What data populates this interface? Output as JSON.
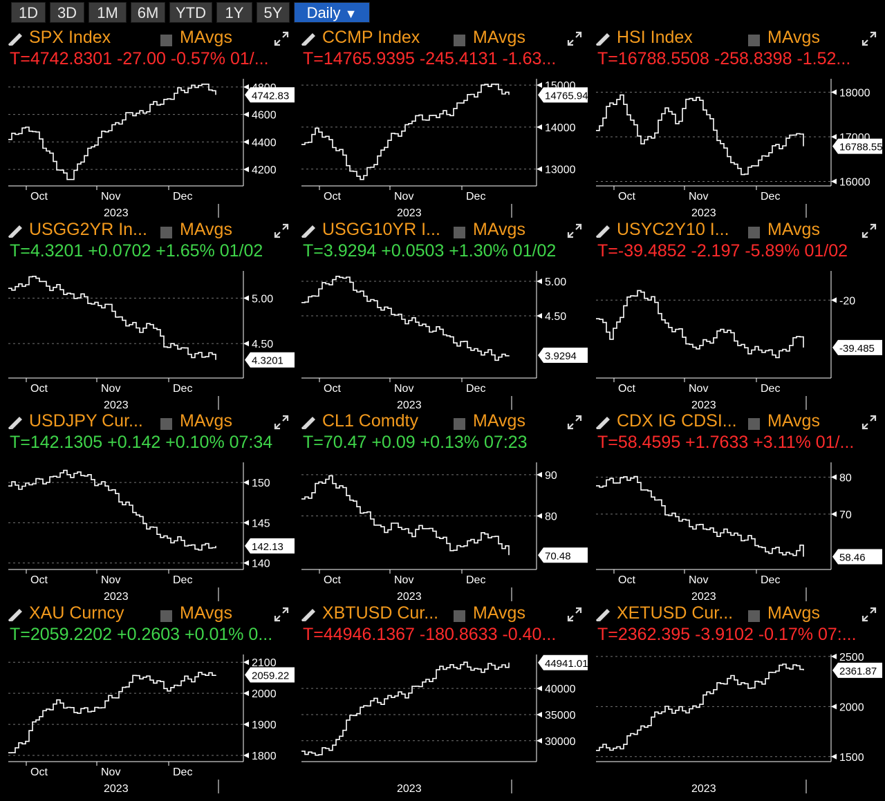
{
  "toolbar": {
    "buttons": [
      "1D",
      "3D",
      "1M",
      "6M",
      "YTD",
      "1Y",
      "5Y"
    ],
    "period_label": "Daily",
    "period_arrow": "▼",
    "active_color": "#1f5fbf"
  },
  "colors": {
    "header": "#f39a1d",
    "negative": "#ff2b2b",
    "positive": "#3fd54a"
  },
  "panels": [
    {
      "title": "SPX Index",
      "mavgs": "MAvgs",
      "quote": "T=4742.8301 -27.00 -0.57% 01/...",
      "direction": "negative",
      "chart_data": {
        "type": "line",
        "y_ticks": [
          "4800",
          "4600",
          "4400",
          "4200"
        ],
        "y_tick_values": [
          4800,
          4600,
          4400,
          4200
        ],
        "ylim": [
          4080,
          4860
        ],
        "last_label": "4742.83",
        "last_value": 4742.83,
        "x_labels": [
          "Oct",
          "Nov",
          "Dec"
        ],
        "year_label": "2023",
        "shape": [
          0.4,
          0.55,
          0.5,
          0.35,
          0.1,
          0.0,
          0.2,
          0.4,
          0.5,
          0.62,
          0.68,
          0.72,
          0.78,
          0.85,
          0.92,
          0.98,
          1.0,
          0.94
        ]
      }
    },
    {
      "title": "CCMP Index",
      "mavgs": "MAvgs",
      "quote": "T=14765.9395 -245.4131 -1.63...",
      "direction": "negative",
      "chart_data": {
        "type": "line",
        "y_ticks": [
          "15000",
          "14000",
          "13000"
        ],
        "y_tick_values": [
          15000,
          14000,
          13000
        ],
        "ylim": [
          12600,
          15150
        ],
        "last_label": "14765.94",
        "last_value": 14765.94,
        "x_labels": [
          "Oct",
          "Nov",
          "Dec"
        ],
        "year_label": "2023",
        "shape": [
          0.35,
          0.5,
          0.45,
          0.3,
          0.1,
          0.0,
          0.2,
          0.4,
          0.5,
          0.62,
          0.66,
          0.66,
          0.7,
          0.8,
          0.9,
          0.98,
          1.0,
          0.85
        ]
      }
    },
    {
      "title": "HSI Index",
      "mavgs": "MAvgs",
      "quote": "T=16788.5508 -258.8398 -1.52...",
      "direction": "negative",
      "chart_data": {
        "type": "line",
        "y_ticks": [
          "18000",
          "17000",
          "16000"
        ],
        "y_tick_values": [
          18000,
          17000,
          16000
        ],
        "ylim": [
          15900,
          18300
        ],
        "last_label": "16788.55",
        "last_value": 16788.55,
        "x_labels": [
          "Oct",
          "Nov",
          "Dec"
        ],
        "year_label": "2023",
        "shape": [
          0.5,
          0.75,
          0.9,
          0.6,
          0.4,
          0.45,
          0.8,
          0.55,
          0.9,
          0.8,
          0.6,
          0.3,
          0.15,
          0.05,
          0.2,
          0.3,
          0.35,
          0.5,
          0.4
        ]
      }
    },
    {
      "title": "USGG2YR In...",
      "mavgs": "MAvgs",
      "quote": "T=4.3201 +0.0702 +1.65% 01/02",
      "direction": "positive",
      "chart_data": {
        "type": "line",
        "y_ticks": [
          "5.00",
          "4.50"
        ],
        "y_tick_values": [
          5.0,
          4.5
        ],
        "ylim": [
          4.12,
          5.3
        ],
        "last_label": "4.3201",
        "last_value": 4.3201,
        "x_labels": [
          "Oct",
          "Nov",
          "Dec"
        ],
        "year_label": "2023",
        "shape": [
          0.85,
          0.92,
          1.0,
          0.9,
          0.85,
          0.8,
          0.75,
          0.7,
          0.65,
          0.5,
          0.45,
          0.5,
          0.3,
          0.25,
          0.2,
          0.15,
          0.2
        ]
      }
    },
    {
      "title": "USGG10YR I...",
      "mavgs": "MAvgs",
      "quote": "T=3.9294 +0.0503 +1.30% 01/02",
      "direction": "positive",
      "chart_data": {
        "type": "line",
        "y_ticks": [
          "5.00",
          "4.50"
        ],
        "y_tick_values": [
          5.0,
          4.5
        ],
        "ylim": [
          3.6,
          5.15
        ],
        "last_label": "3.9294",
        "last_value": 3.9294,
        "x_labels": [
          "Oct",
          "Nov",
          "Dec"
        ],
        "year_label": "2023",
        "shape": [
          0.75,
          0.8,
          0.95,
          1.0,
          0.9,
          0.75,
          0.7,
          0.6,
          0.55,
          0.5,
          0.45,
          0.4,
          0.3,
          0.25,
          0.2,
          0.15,
          0.2
        ]
      }
    },
    {
      "title": "USYC2Y10 I...",
      "mavgs": "MAvgs",
      "quote": "T=-39.4852 -2.197 -5.89% 01/02",
      "direction": "negative",
      "chart_data": {
        "type": "line",
        "y_ticks": [
          "-20"
        ],
        "y_tick_values": [
          -20
        ],
        "ylim": [
          -52,
          -8
        ],
        "last_label": "-39.485",
        "last_value": -39.485,
        "x_labels": [
          "Oct",
          "Nov",
          "Dec"
        ],
        "year_label": "2023",
        "shape": [
          0.6,
          0.35,
          0.7,
          0.85,
          0.75,
          0.5,
          0.4,
          0.25,
          0.3,
          0.45,
          0.35,
          0.2,
          0.25,
          0.15,
          0.3,
          0.4
        ]
      }
    },
    {
      "title": "USDJPY Cur...",
      "mavgs": "MAvgs",
      "quote": "T=142.1305 +0.142 +0.10% 07:34",
      "direction": "positive",
      "chart_data": {
        "type": "line",
        "y_ticks": [
          "150",
          "145",
          "140"
        ],
        "y_tick_values": [
          150,
          145,
          140
        ],
        "ylim": [
          139.2,
          152.5
        ],
        "last_label": "142.13",
        "last_value": 142.13,
        "x_labels": [
          "Oct",
          "Nov",
          "Dec"
        ],
        "year_label": "2023",
        "shape": [
          0.8,
          0.82,
          0.85,
          0.9,
          0.95,
          0.92,
          0.85,
          0.75,
          0.6,
          0.45,
          0.3,
          0.25,
          0.2,
          0.15,
          0.2
        ]
      }
    },
    {
      "title": "CL1 Comdty",
      "mavgs": "MAvgs",
      "quote": "T=70.47 +0.09 +0.13% 07:23",
      "direction": "positive",
      "chart_data": {
        "type": "line",
        "y_ticks": [
          "90",
          "80"
        ],
        "y_tick_values": [
          90,
          80
        ],
        "ylim": [
          67,
          93
        ],
        "last_label": "70.48",
        "last_value": 70.48,
        "x_labels": [
          "Oct",
          "Nov",
          "Dec"
        ],
        "year_label": "2023",
        "shape": [
          0.65,
          0.8,
          0.9,
          0.75,
          0.6,
          0.45,
          0.35,
          0.4,
          0.3,
          0.4,
          0.25,
          0.15,
          0.2,
          0.3,
          0.25,
          0.15
        ]
      }
    },
    {
      "title": "CDX IG CDSI...",
      "mavgs": "MAvgs",
      "quote": "T=58.4595 +1.7633 +3.11% 01/...",
      "direction": "negative",
      "chart_data": {
        "type": "line",
        "y_ticks": [
          "80",
          "70"
        ],
        "y_tick_values": [
          80,
          70
        ],
        "ylim": [
          55,
          84
        ],
        "last_label": "58.46",
        "last_value": 58.46,
        "x_labels": [
          "Oct",
          "Nov",
          "Dec"
        ],
        "year_label": "2023",
        "shape": [
          0.8,
          0.85,
          0.9,
          0.85,
          0.7,
          0.55,
          0.45,
          0.4,
          0.35,
          0.32,
          0.3,
          0.25,
          0.15,
          0.12,
          0.1,
          0.15
        ]
      }
    },
    {
      "title": "XAU Curncy",
      "mavgs": "MAvgs",
      "quote": "T=2059.2202 +0.2603 +0.01% 0...",
      "direction": "positive",
      "chart_data": {
        "type": "line",
        "y_ticks": [
          "2100",
          "2000",
          "1900",
          "1800"
        ],
        "y_tick_values": [
          2100,
          2000,
          1900,
          1800
        ],
        "ylim": [
          1780,
          2125
        ],
        "last_label": "2059.22",
        "last_value": 2059.22,
        "x_labels": [
          "Oct",
          "Nov",
          "Dec"
        ],
        "year_label": "2023",
        "shape": [
          0.0,
          0.15,
          0.4,
          0.55,
          0.5,
          0.45,
          0.5,
          0.6,
          0.75,
          0.85,
          0.75,
          0.7,
          0.8,
          0.85,
          0.82
        ]
      }
    },
    {
      "title": "XBTUSD Cur...",
      "mavgs": "MAvgs",
      "quote": "T=44946.1367 -180.8633 -0.40...",
      "direction": "negative",
      "chart_data": {
        "type": "line",
        "y_ticks": [
          "40000",
          "35000",
          "30000"
        ],
        "y_tick_values": [
          40000,
          35000,
          30000
        ],
        "ylim": [
          26000,
          46500
        ],
        "last_label": "44941.01",
        "last_value": 44941.01,
        "x_labels": [],
        "year_label": "2023",
        "shape": [
          0.05,
          0.0,
          0.15,
          0.45,
          0.55,
          0.6,
          0.65,
          0.75,
          0.9,
          0.95,
          0.9,
          0.92,
          0.95
        ]
      }
    },
    {
      "title": "XETUSD Cur...",
      "mavgs": "MAvgs",
      "quote": "T=2362.395 -3.9102 -0.17% 07:...",
      "direction": "negative",
      "chart_data": {
        "type": "line",
        "y_ticks": [
          "2500",
          "2000",
          "1500"
        ],
        "y_tick_values": [
          2500,
          2000,
          1500
        ],
        "ylim": [
          1450,
          2520
        ],
        "last_label": "2361.87",
        "last_value": 2361.87,
        "x_labels": [],
        "year_label": "2023",
        "shape": [
          0.1,
          0.05,
          0.2,
          0.35,
          0.5,
          0.45,
          0.55,
          0.75,
          0.8,
          0.7,
          0.85,
          0.95,
          0.9
        ]
      }
    }
  ]
}
